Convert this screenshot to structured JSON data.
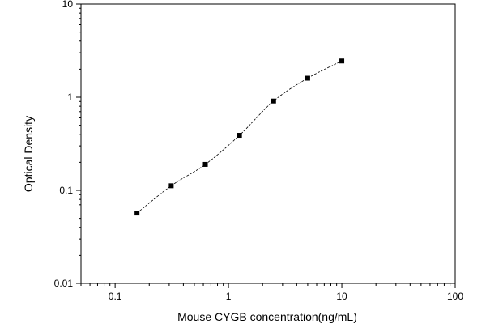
{
  "chart_data": {
    "type": "scatter",
    "title": "",
    "xlabel": "Mouse CYGB concentration(ng/mL)",
    "ylabel": "Optical Density",
    "xscale": "log",
    "yscale": "log",
    "xlim": [
      0.05,
      100
    ],
    "ylim": [
      0.01,
      10
    ],
    "grid": false,
    "legend": "none",
    "x_ticks": [
      {
        "value": 0.1,
        "label": "0.1"
      },
      {
        "value": 1,
        "label": "1"
      },
      {
        "value": 10,
        "label": "10"
      },
      {
        "value": 100,
        "label": "100"
      }
    ],
    "y_ticks": [
      {
        "value": 0.01,
        "label": "0.01"
      },
      {
        "value": 0.1,
        "label": "0.1"
      },
      {
        "value": 1,
        "label": "1"
      },
      {
        "value": 10,
        "label": "10"
      }
    ],
    "series": [
      {
        "x": [
          0.156,
          0.3125,
          0.625,
          1.25,
          2.5,
          5,
          10
        ],
        "y": [
          0.057,
          0.112,
          0.19,
          0.39,
          0.91,
          1.6,
          2.45
        ],
        "marker": "square",
        "fit_curve": "dashed"
      }
    ],
    "colors": {
      "marks": "#000000",
      "axes": "#000000"
    }
  }
}
